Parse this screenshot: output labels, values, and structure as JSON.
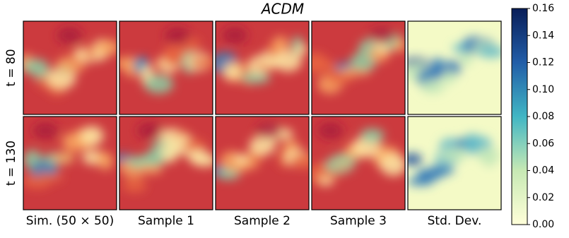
{
  "chart_data": {
    "type": "heatmap-grid",
    "title": "ACDM",
    "rows": [
      "t = 80",
      "t = 130"
    ],
    "columns": [
      "Sim. (50 × 50)",
      "Sample 1",
      "Sample 2",
      "Sample 3",
      "Std. Dev."
    ],
    "colorbar": {
      "ylim": [
        0,
        0.16
      ],
      "yticks": [
        {
          "value": 0,
          "label": "0.00"
        },
        0.02,
        0.04,
        0.06,
        0.08,
        {
          "value": 0.1,
          "label": "0.10"
        },
        0.12,
        0.14,
        0.16
      ],
      "colors": [
        "#ffffd9",
        "#c7e9b4",
        "#41b6c4",
        "#225ea8",
        "#081d58"
      ]
    }
  }
}
